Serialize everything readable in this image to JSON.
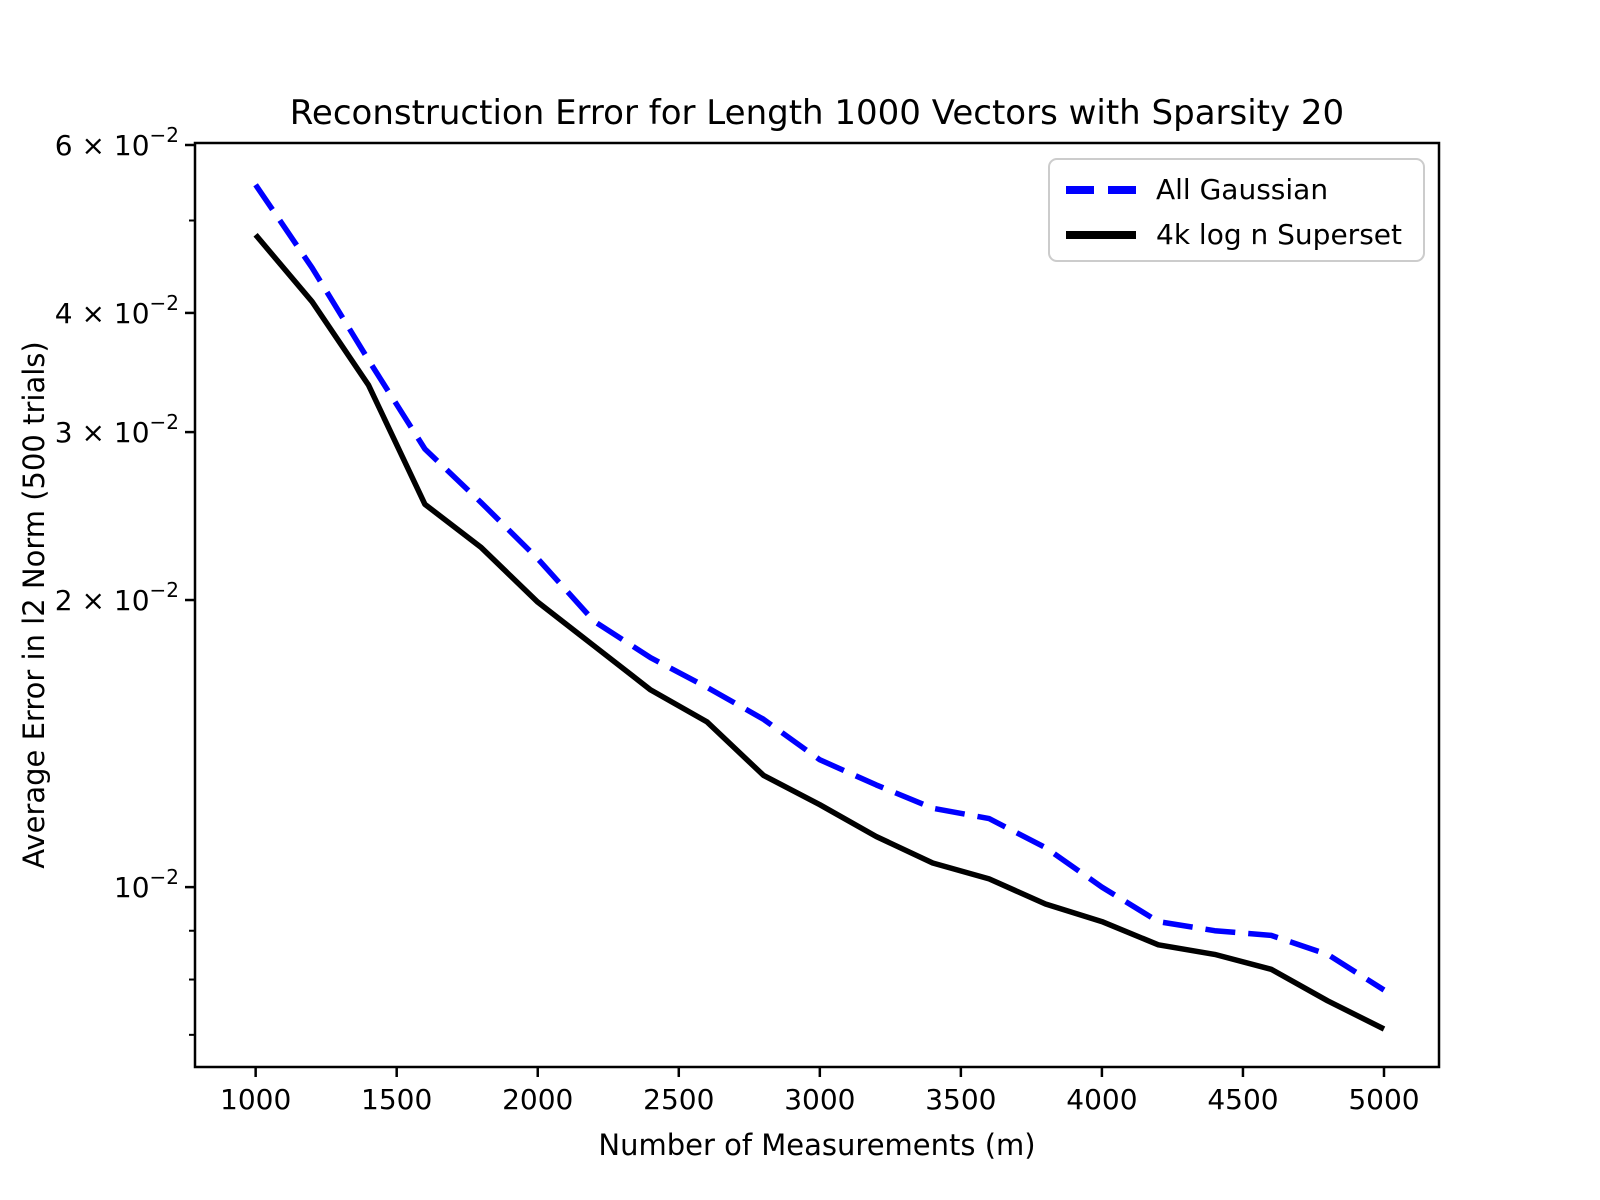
{
  "chart_data": {
    "type": "line",
    "title": "Reconstruction Error for Length 1000 Vectors with Sparsity 20",
    "xlabel": "Number of Measurements (m)",
    "ylabel": "Average Error in l2 Norm (500 trials)",
    "yscale": "log",
    "grid": false,
    "xlim": [
      785,
      5195
    ],
    "ylim": [
      0.006477,
      0.06029
    ],
    "x": [
      1000,
      1200,
      1400,
      1600,
      1800,
      2000,
      2200,
      2400,
      2600,
      2800,
      3000,
      3200,
      3400,
      3600,
      3800,
      4000,
      4200,
      4400,
      4600,
      4800,
      5000
    ],
    "series": [
      {
        "name": "All Gaussian",
        "color": "#0000ff",
        "style": "dashed",
        "linewidth": 5.5,
        "values": [
          0.0545,
          0.0446,
          0.0357,
          0.0288,
          0.0253,
          0.0221,
          0.019,
          0.0174,
          0.0162,
          0.015,
          0.0136,
          0.0128,
          0.0121,
          0.0118,
          0.011,
          0.01,
          0.0092,
          0.009,
          0.0089,
          0.0085,
          0.0078
        ]
      },
      {
        "name": "4k log n Superset",
        "color": "#000000",
        "style": "solid",
        "linewidth": 5.5,
        "values": [
          0.0483,
          0.0411,
          0.0336,
          0.0252,
          0.0227,
          0.0199,
          0.0179,
          0.0161,
          0.0149,
          0.0131,
          0.0122,
          0.0113,
          0.0106,
          0.0102,
          0.0096,
          0.0092,
          0.0087,
          0.0085,
          0.0082,
          0.0076,
          0.0071
        ]
      }
    ],
    "x_ticks": [
      1000,
      1500,
      2000,
      2500,
      3000,
      3500,
      4000,
      4500,
      5000
    ],
    "y_ticks_major": [
      {
        "value": 0.06,
        "base": "6 × 10",
        "exp": "−2"
      },
      {
        "value": 0.04,
        "base": "4 × 10",
        "exp": "−2"
      },
      {
        "value": 0.03,
        "base": "3 × 10",
        "exp": "−2"
      },
      {
        "value": 0.02,
        "base": "2 × 10",
        "exp": "−2"
      },
      {
        "value": 0.01,
        "base": "10",
        "exp": "−2"
      }
    ],
    "y_ticks_minor": [
      0.05,
      0.009,
      0.008,
      0.007
    ],
    "legend": {
      "position": "upper right"
    }
  }
}
